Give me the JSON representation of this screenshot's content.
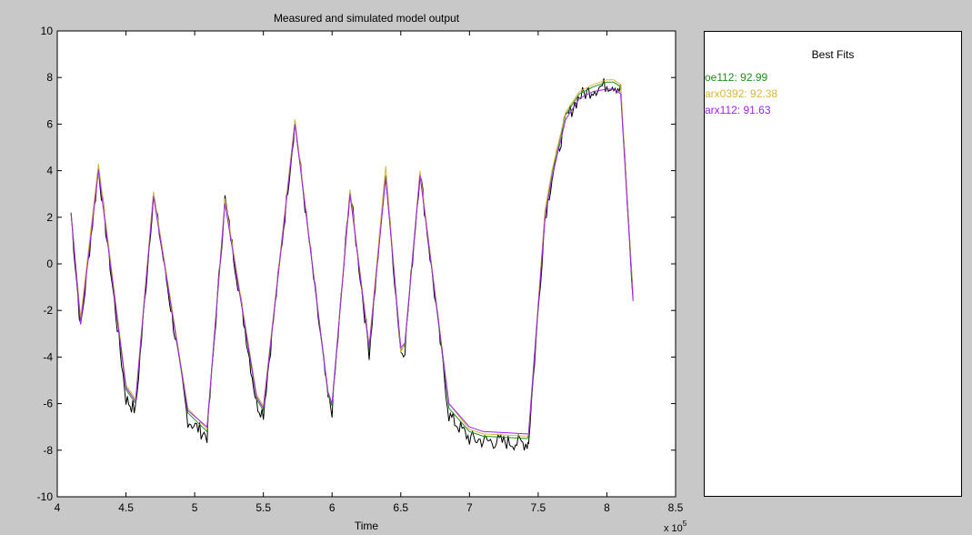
{
  "chart_data": {
    "type": "line",
    "title": "Measured and simulated model output",
    "xlabel": "Time",
    "ylabel": "",
    "x_multiplier_label": "x 10",
    "x_multiplier_exponent": "5",
    "xlim": [
      4.0,
      8.5
    ],
    "ylim": [
      -10,
      10
    ],
    "x_ticks": [
      4,
      4.5,
      5,
      5.5,
      6,
      6.5,
      7,
      7.5,
      8,
      8.5
    ],
    "x_tick_labels": [
      "4",
      "4.5",
      "5",
      "5.5",
      "6",
      "6.5",
      "7",
      "7.5",
      "8",
      "8.5"
    ],
    "y_ticks": [
      -10,
      -8,
      -6,
      -4,
      -2,
      0,
      2,
      4,
      6,
      8,
      10
    ],
    "y_tick_labels": [
      "-10",
      "-8",
      "-6",
      "-4",
      "-2",
      "0",
      "2",
      "4",
      "6",
      "8",
      "10"
    ],
    "grid": false,
    "series": [
      {
        "name": "",
        "color": "#000000",
        "noisy": true,
        "x": [
          4.1,
          4.17,
          4.3,
          4.5,
          4.57,
          4.7,
          4.95,
          5.09,
          5.22,
          5.45,
          5.5,
          5.73,
          5.97,
          6.0,
          6.13,
          6.27,
          6.39,
          6.5,
          6.53,
          6.64,
          6.85,
          7.0,
          7.1,
          7.42,
          7.43,
          7.55,
          7.6,
          7.7,
          7.8,
          7.9,
          8.0,
          8.05,
          8.1,
          8.19
        ],
        "y": [
          2.2,
          -2.8,
          4.1,
          -5.8,
          -6.3,
          3.0,
          -6.7,
          -7.4,
          2.8,
          -6.0,
          -6.4,
          6.1,
          -5.8,
          -6.3,
          3.2,
          -3.8,
          3.9,
          -3.8,
          -3.6,
          4.0,
          -6.5,
          -7.5,
          -7.6,
          -7.7,
          -7.6,
          2.0,
          3.7,
          6.2,
          7.2,
          7.5,
          7.7,
          7.7,
          7.5,
          -1.5
        ]
      },
      {
        "name": "oe112: 92.99",
        "color": "#1a8f1a",
        "x": [
          4.1,
          4.17,
          4.3,
          4.5,
          4.57,
          4.7,
          4.95,
          5.09,
          5.22,
          5.45,
          5.5,
          5.73,
          5.97,
          6.0,
          6.13,
          6.27,
          6.39,
          6.5,
          6.53,
          6.64,
          6.85,
          7.0,
          7.1,
          7.42,
          7.43,
          7.55,
          7.6,
          7.7,
          7.8,
          7.9,
          8.0,
          8.05,
          8.1,
          8.19
        ],
        "y": [
          2.2,
          -2.5,
          4.1,
          -5.4,
          -6.0,
          3.0,
          -6.4,
          -7.2,
          2.7,
          -5.8,
          -6.3,
          6.1,
          -5.6,
          -6.1,
          3.1,
          -3.7,
          3.8,
          -3.7,
          -3.5,
          3.9,
          -6.2,
          -7.2,
          -7.4,
          -7.5,
          -7.4,
          2.2,
          3.9,
          6.4,
          7.3,
          7.6,
          7.8,
          7.8,
          7.6,
          -1.3
        ]
      },
      {
        "name": "arx0392: 92.38",
        "color": "#d9b83a",
        "x": [
          4.1,
          4.17,
          4.3,
          4.5,
          4.57,
          4.7,
          4.95,
          5.09,
          5.22,
          5.45,
          5.5,
          5.73,
          5.97,
          6.0,
          6.13,
          6.27,
          6.39,
          6.5,
          6.53,
          6.64,
          6.85,
          7.0,
          7.1,
          7.42,
          7.43,
          7.55,
          7.6,
          7.7,
          7.8,
          7.9,
          8.0,
          8.05,
          8.1,
          8.19
        ],
        "y": [
          2.2,
          -2.3,
          4.3,
          -5.2,
          -5.8,
          3.1,
          -6.2,
          -7.1,
          2.8,
          -5.6,
          -6.1,
          6.2,
          -5.5,
          -6.0,
          3.2,
          -3.5,
          4.2,
          -3.8,
          -3.4,
          4.0,
          -6.0,
          -7.1,
          -7.3,
          -7.4,
          -7.3,
          2.3,
          4.0,
          6.5,
          7.4,
          7.7,
          7.9,
          7.9,
          7.7,
          -1.4
        ]
      },
      {
        "name": "arx112: 91.63",
        "color": "#a020f0",
        "x": [
          4.1,
          4.17,
          4.3,
          4.5,
          4.57,
          4.7,
          4.95,
          5.09,
          5.22,
          5.45,
          5.5,
          5.73,
          5.97,
          6.0,
          6.13,
          6.27,
          6.39,
          6.5,
          6.53,
          6.64,
          6.85,
          7.0,
          7.1,
          7.42,
          7.43,
          7.55,
          7.6,
          7.7,
          7.8,
          7.9,
          8.0,
          8.05,
          8.1,
          8.19
        ],
        "y": [
          2.2,
          -2.6,
          4.0,
          -5.3,
          -5.9,
          2.9,
          -6.3,
          -7.0,
          2.6,
          -5.7,
          -6.2,
          6.0,
          -5.5,
          -6.0,
          3.0,
          -3.6,
          3.7,
          -3.6,
          -3.4,
          3.8,
          -6.0,
          -7.0,
          -7.2,
          -7.3,
          -7.3,
          2.0,
          3.7,
          6.2,
          7.1,
          7.4,
          7.5,
          7.5,
          7.3,
          -1.6
        ]
      }
    ]
  },
  "fits_panel": {
    "title": "Best Fits",
    "items": [
      {
        "label": "oe112: 92.99",
        "color": "#1a8f1a"
      },
      {
        "label": "arx0392: 92.38",
        "color": "#d9b83a"
      },
      {
        "label": "arx112: 91.63",
        "color": "#a020f0"
      }
    ]
  }
}
